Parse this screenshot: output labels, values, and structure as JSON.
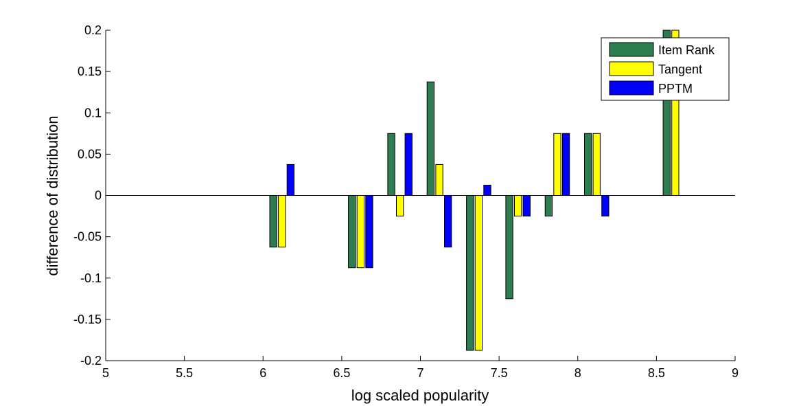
{
  "chart_data": {
    "type": "bar",
    "xlabel": "log scaled popularity",
    "ylabel": "difference of distribution",
    "xlim": [
      5,
      9
    ],
    "ylim": [
      -0.2,
      0.2
    ],
    "xticks": [
      "5",
      "5.5",
      "6",
      "6.5",
      "7",
      "7.5",
      "8",
      "8.5",
      "9"
    ],
    "yticks": [
      "0.2",
      "0.15",
      "0.1",
      "0.05",
      "0",
      "-0.05",
      "-0.1",
      "-0.15",
      "-0.2"
    ],
    "legend_position": "top-right",
    "bar_width": 0.045,
    "x": [
      6.12,
      6.62,
      6.87,
      7.12,
      7.37,
      7.62,
      7.87,
      8.12,
      8.62
    ],
    "series": [
      {
        "name": "Item Rank",
        "color": "#2e7d4f",
        "offset": -0.055,
        "values": [
          -0.0625,
          -0.0875,
          0.075,
          0.1375,
          -0.1875,
          -0.125,
          -0.025,
          0.075,
          0.2
        ]
      },
      {
        "name": "Tangent",
        "color": "#ffff00",
        "offset": 0,
        "values": [
          -0.0625,
          -0.0875,
          -0.025,
          0.0375,
          -0.1875,
          -0.025,
          0.075,
          0.075,
          0.2
        ]
      },
      {
        "name": "PPTM",
        "color": "#0000ff",
        "offset": 0.055,
        "values": [
          0.0375,
          -0.0875,
          0.075,
          -0.0625,
          0.0125,
          -0.025,
          0.075,
          -0.025,
          0
        ]
      }
    ]
  }
}
